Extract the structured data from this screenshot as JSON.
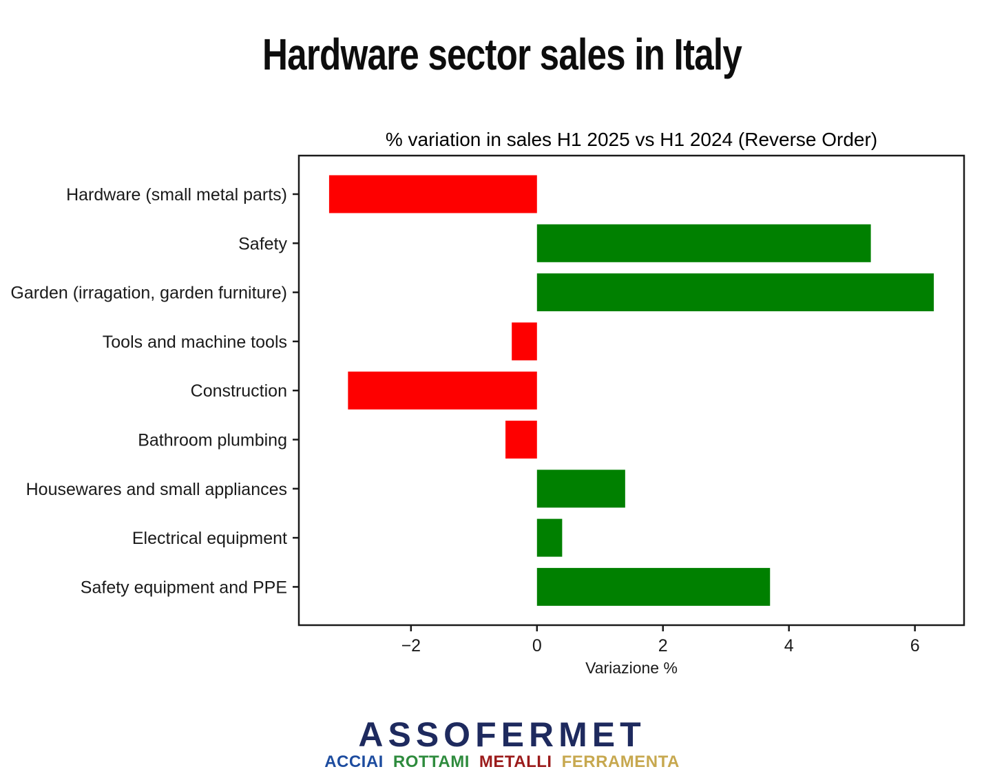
{
  "title": "Hardware sector sales in Italy",
  "chart_data": {
    "type": "bar",
    "orientation": "horizontal",
    "title": "% variation in sales H1 2025 vs H1 2024 (Reverse Order)",
    "xlabel": "Variazione %",
    "ylabel": "",
    "categories": [
      "Hardware (small metal parts)",
      "Safety",
      "Garden (irragation, garden furniture)",
      "Tools and machine tools",
      "Construction",
      "Bathroom plumbing",
      "Housewares and small appliances",
      "Electrical equipment",
      "Safety equipment and PPE"
    ],
    "values": [
      -3.3,
      5.3,
      6.3,
      -0.4,
      -3.0,
      -0.5,
      1.4,
      0.4,
      3.7
    ],
    "xlim": [
      -3.78,
      6.78
    ],
    "xticks": [
      -2,
      0,
      2,
      4,
      6
    ],
    "grid": false,
    "legend": "none",
    "colors": {
      "positive": "#008000",
      "negative": "#fe0000"
    }
  },
  "logo": {
    "wordmark": "ASSOFERMET",
    "wordmark_color": "#1e2a5e",
    "subwords": [
      {
        "text": "ACCIAI",
        "color": "#1d4c9f"
      },
      {
        "text": "ROTTAMI",
        "color": "#2e8b3d"
      },
      {
        "text": "METALLI",
        "color": "#9b1b1b"
      },
      {
        "text": "FERRAMENTA",
        "color": "#c7a84f"
      }
    ]
  }
}
